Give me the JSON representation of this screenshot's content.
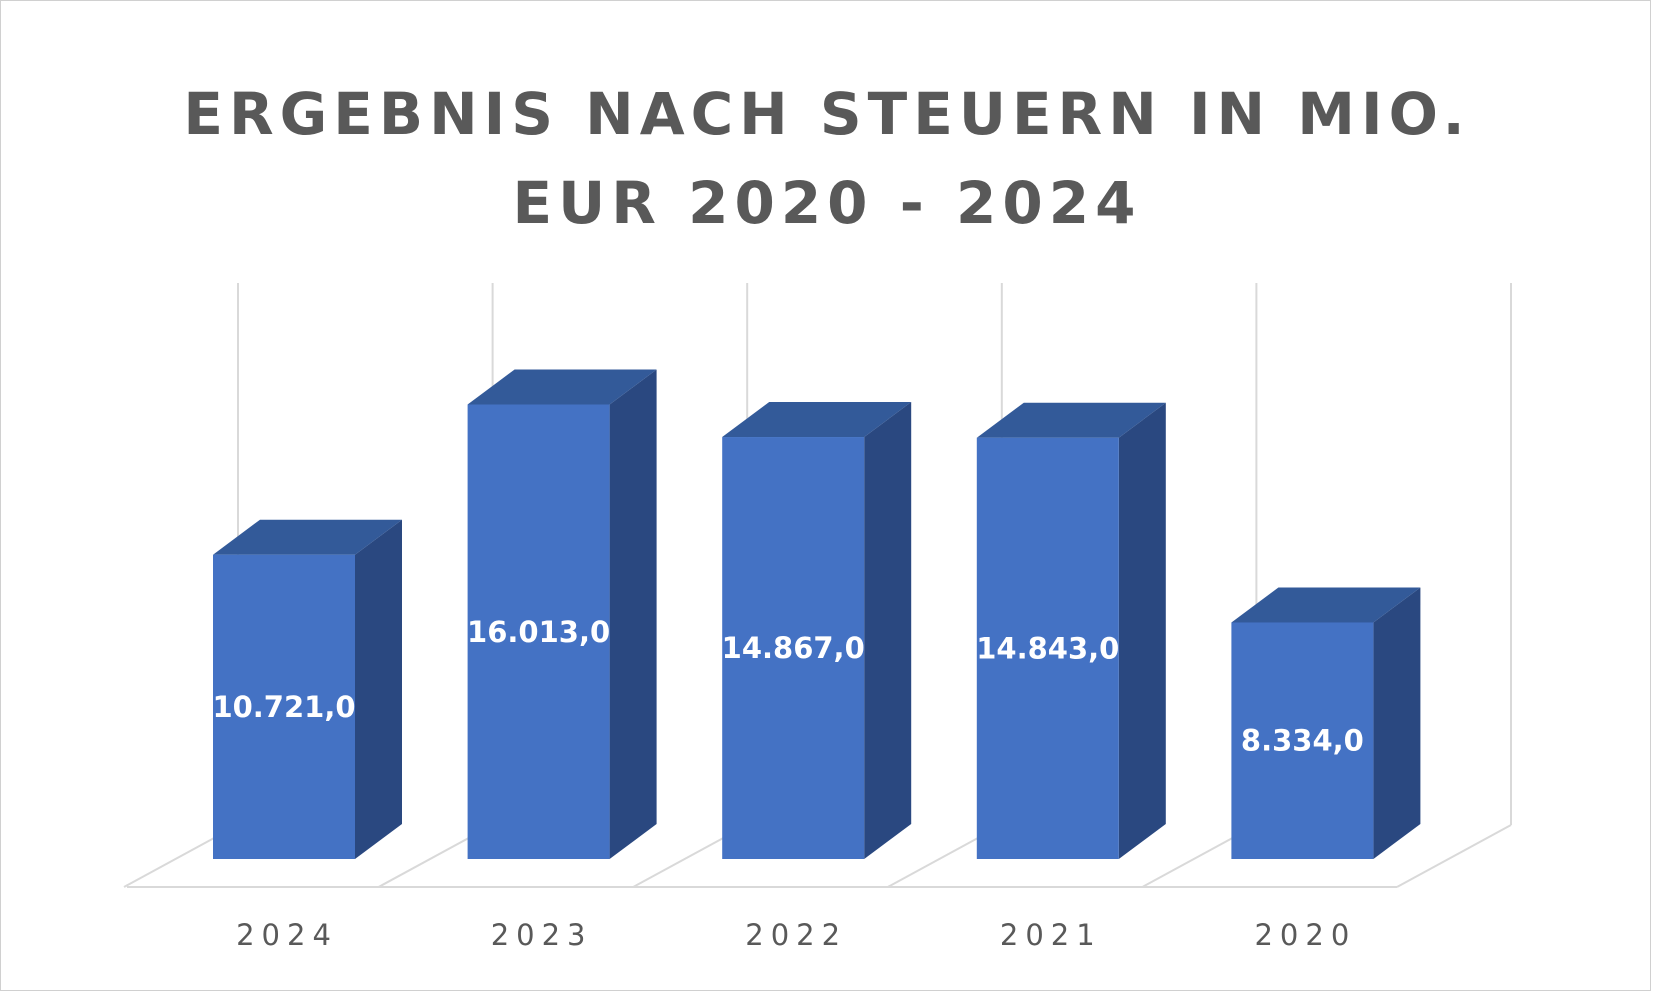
{
  "chart_data": {
    "type": "bar",
    "style": "3d-column",
    "title": "ERGEBNIS NACH STEUERN IN MIO. EUR 2020 - 2024",
    "title_lines": [
      "ERGEBNIS NACH STEUERN IN MIO.",
      "EUR 2020 - 2024"
    ],
    "categories": [
      "2024",
      "2023",
      "2022",
      "2021",
      "2020"
    ],
    "values": [
      10721.0,
      16013.0,
      14867.0,
      14843.0,
      8334.0
    ],
    "data_labels": [
      "10.721,0",
      "16.013,0",
      "14.867,0",
      "14.843,0",
      "8.334,0"
    ],
    "xlabel": "",
    "ylabel": "",
    "ylim": [
      0,
      18000
    ],
    "grid": true,
    "legend": "none",
    "colors": {
      "bar_front": "#4472C4",
      "bar_top": "#335A99",
      "bar_side": "#2A4880",
      "grid": "#D9D9D9",
      "text": "#595959",
      "label": "#FFFFFF"
    }
  }
}
